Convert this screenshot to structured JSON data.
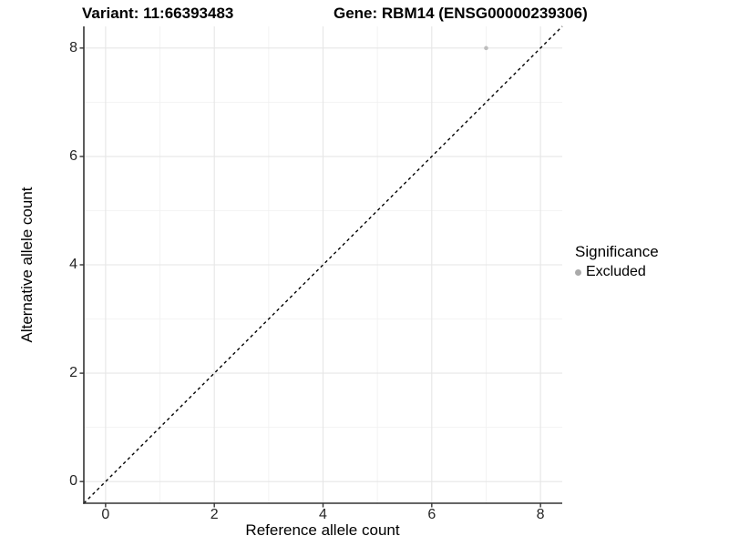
{
  "header": {
    "title_left": "Variant: 11:66393483",
    "title_right": "Gene: RBM14 (ENSG00000239306)"
  },
  "chart_data": {
    "type": "scatter",
    "title_left": "Variant: 11:66393483",
    "title_right": "Gene: RBM14 (ENSG00000239306)",
    "xlabel": "Reference allele count",
    "ylabel": "Alternative allele count",
    "xlim": [
      -0.4,
      8.4
    ],
    "ylim": [
      -0.4,
      8.4
    ],
    "x_ticks": [
      0,
      2,
      4,
      6,
      8
    ],
    "y_ticks": [
      0,
      2,
      4,
      6,
      8
    ],
    "x_minor_ticks": [
      1,
      3,
      5,
      7
    ],
    "y_minor_ticks": [
      1,
      3,
      5,
      7
    ],
    "grid": true,
    "identity_line": {
      "style": "dashed",
      "from": [
        -0.4,
        -0.4
      ],
      "to": [
        8.4,
        8.4
      ],
      "color": "#000000"
    },
    "series": [
      {
        "name": "Excluded",
        "color": "#bdbdbd",
        "points": [
          {
            "x": 7,
            "y": 8
          }
        ]
      }
    ],
    "legend_position": "right"
  },
  "legend": {
    "title": "Significance",
    "items": [
      {
        "label": "Excluded",
        "color": "#aaaaaa"
      }
    ]
  },
  "colors": {
    "background": "#ffffff",
    "grid_major": "#e6e6e6",
    "grid_minor": "#f2f2f2",
    "axis_line": "#333333",
    "tick_mark": "#333333",
    "tick_label": "#262626",
    "point": "#bdbdbd"
  }
}
